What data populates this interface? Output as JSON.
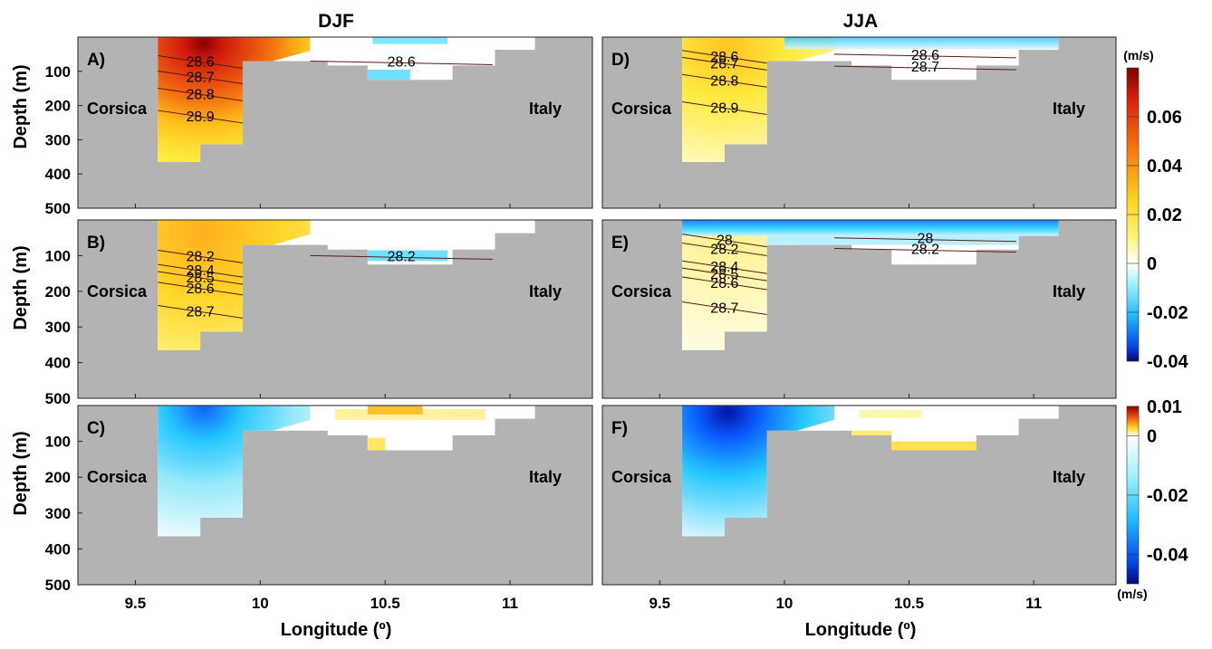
{
  "chart_data": {
    "type": "heatmap",
    "column_titles": [
      "DJF",
      "JJA"
    ],
    "ylabel": "Depth (m)",
    "xlabel": "Longitude (º)",
    "xlim": [
      9.27,
      11.33
    ],
    "ylim": [
      500,
      0
    ],
    "xticks": [
      "9.5",
      "10",
      "10.5",
      "11"
    ],
    "yticks": [
      "100",
      "200",
      "300",
      "400",
      "500"
    ],
    "place_labels": {
      "west": "Corsica",
      "east": "Italy"
    },
    "land_color": "#b3b3b3",
    "colorbar_main": {
      "unit": "(m/s)",
      "range": [
        -0.04,
        0.08
      ],
      "ticks": [
        "0.06",
        "0.04",
        "0.02",
        "0",
        "-0.02",
        "-0.04"
      ]
    },
    "colorbar_diff": {
      "unit": "(m/s)",
      "range": [
        -0.05,
        0.01
      ],
      "ticks": [
        "0.01",
        "0",
        "-0.02",
        "-0.04"
      ]
    },
    "panels": [
      {
        "label": "A)",
        "season": "DJF",
        "field": "current_velocity",
        "isopycnals": [
          {
            "label": "28.6",
            "depth": 70
          },
          {
            "label": "28.7",
            "depth": 115
          },
          {
            "label": "28.8",
            "depth": 165
          },
          {
            "label": "28.9",
            "depth": 230
          },
          {
            "label": "28.6",
            "depth": 70,
            "east": true
          }
        ]
      },
      {
        "label": "B)",
        "season": "DJF",
        "field": "current_velocity",
        "isopycnals": [
          {
            "label": "28.2",
            "depth": 100
          },
          {
            "label": "28.4",
            "depth": 140
          },
          {
            "label": "28.5",
            "depth": 160
          },
          {
            "label": "28.6",
            "depth": 190
          },
          {
            "label": "28.7",
            "depth": 255
          },
          {
            "label": "28.2",
            "depth": 100,
            "east": true
          }
        ]
      },
      {
        "label": "C)",
        "season": "DJF",
        "field": "velocity_difference"
      },
      {
        "label": "D)",
        "season": "JJA",
        "field": "current_velocity",
        "isopycnals": [
          {
            "label": "28.6",
            "depth": 55
          },
          {
            "label": "28.7",
            "depth": 75
          },
          {
            "label": "28.8",
            "depth": 125
          },
          {
            "label": "28.9",
            "depth": 205
          },
          {
            "label": "28.6",
            "depth": 50,
            "east": true
          },
          {
            "label": "28.7",
            "depth": 85,
            "east": true
          }
        ]
      },
      {
        "label": "E)",
        "season": "JJA",
        "field": "current_velocity",
        "isopycnals": [
          {
            "label": "28",
            "depth": 55
          },
          {
            "label": "28.2",
            "depth": 80
          },
          {
            "label": "28.4",
            "depth": 130
          },
          {
            "label": "28.5",
            "depth": 150
          },
          {
            "label": "28.6",
            "depth": 175
          },
          {
            "label": "28.7",
            "depth": 245
          },
          {
            "label": "28",
            "depth": 50,
            "east": true
          },
          {
            "label": "28.2",
            "depth": 80,
            "east": true
          }
        ]
      },
      {
        "label": "F)",
        "season": "JJA",
        "field": "velocity_difference"
      }
    ]
  }
}
